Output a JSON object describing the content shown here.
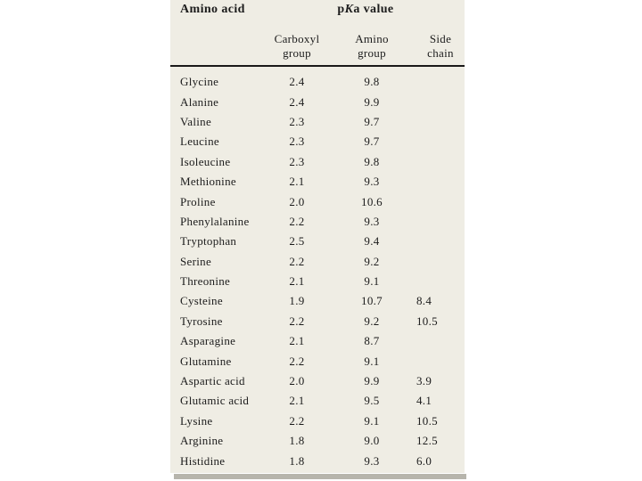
{
  "header": {
    "pka_p": "p",
    "pka_K": "K",
    "pka_rest": "a value"
  },
  "chart_data": {
    "type": "table",
    "group_header": "pKa value",
    "columns": [
      "Amino acid",
      "Carboxyl group",
      "Amino group",
      "Side chain"
    ],
    "rows": [
      [
        "Glycine",
        "2.4",
        "9.8",
        ""
      ],
      [
        "Alanine",
        "2.4",
        "9.9",
        ""
      ],
      [
        "Valine",
        "2.3",
        "9.7",
        ""
      ],
      [
        "Leucine",
        "2.3",
        "9.7",
        ""
      ],
      [
        "Isoleucine",
        "2.3",
        "9.8",
        ""
      ],
      [
        "Methionine",
        "2.1",
        "9.3",
        ""
      ],
      [
        "Proline",
        "2.0",
        "10.6",
        ""
      ],
      [
        "Phenylalanine",
        "2.2",
        "9.3",
        ""
      ],
      [
        "Tryptophan",
        "2.5",
        "9.4",
        ""
      ],
      [
        "Serine",
        "2.2",
        "9.2",
        ""
      ],
      [
        "Threonine",
        "2.1",
        "9.1",
        ""
      ],
      [
        "Cysteine",
        "1.9",
        "10.7",
        "8.4"
      ],
      [
        "Tyrosine",
        "2.2",
        "9.2",
        "10.5"
      ],
      [
        "Asparagine",
        "2.1",
        "8.7",
        ""
      ],
      [
        "Glutamine",
        "2.2",
        "9.1",
        ""
      ],
      [
        "Aspartic acid",
        "2.0",
        "9.9",
        "3.9"
      ],
      [
        "Glutamic acid",
        "2.1",
        "9.5",
        "4.1"
      ],
      [
        "Lysine",
        "2.2",
        "9.1",
        "10.5"
      ],
      [
        "Arginine",
        "1.8",
        "9.0",
        "12.5"
      ],
      [
        "Histidine",
        "1.8",
        "9.3",
        "6.0"
      ]
    ]
  },
  "colors": {
    "table_background": "#efede4",
    "shadow": "#b7b5ac",
    "text": "#1c1c1c",
    "rule": "#191919",
    "page_background": "#ffffff"
  }
}
